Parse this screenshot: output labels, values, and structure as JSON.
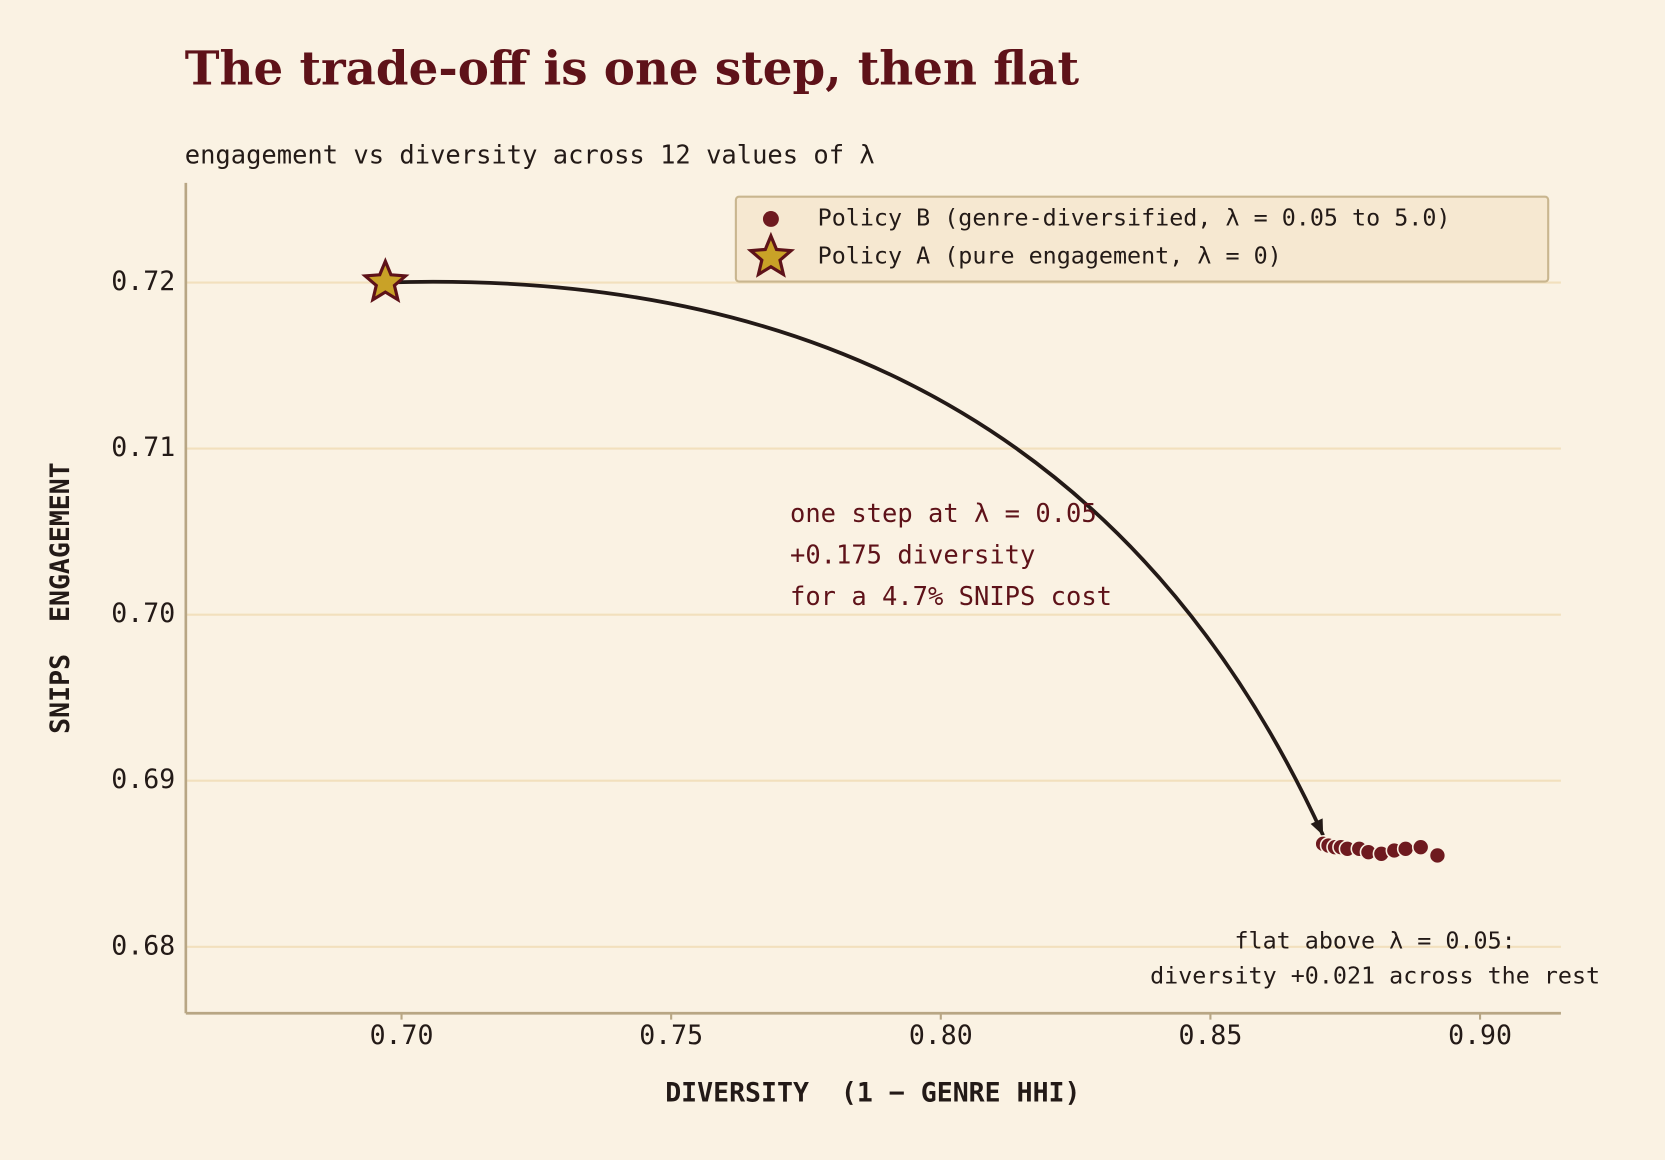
{
  "chart_data": {
    "type": "scatter",
    "title": "The trade-off is one step, then flat",
    "subtitle": "engagement vs diversity across 12 values of λ",
    "x_label": "DIVERSITY  (1 − GENRE HHI)",
    "y_label": "SNIPS  ENGAGEMENT",
    "xlim": [
      0.66,
      0.915
    ],
    "ylim": [
      0.676,
      0.726
    ],
    "xticks": [
      {
        "value": 0.7,
        "label": "0.70"
      },
      {
        "value": 0.75,
        "label": "0.75"
      },
      {
        "value": 0.8,
        "label": "0.80"
      },
      {
        "value": 0.85,
        "label": "0.85"
      },
      {
        "value": 0.9,
        "label": "0.90"
      }
    ],
    "yticks": [
      0.68,
      0.69,
      {
        "value": 0.7,
        "label": "0.70"
      },
      0.71,
      0.72
    ],
    "grid": true,
    "legend": "upper right",
    "series": [
      {
        "name": "Policy B (genre-diversified, λ = 0.05 to 5.0)",
        "color": "#6e1a1f",
        "marker": "circle",
        "x": [
          0.8709,
          0.8719,
          0.8731,
          0.8742,
          0.8754,
          0.8776,
          0.8793,
          0.8817,
          0.8841,
          0.8862,
          0.889,
          0.8921
        ],
        "values": [
          0.6862,
          0.6861,
          0.686,
          0.686,
          0.6859,
          0.6859,
          0.6857,
          0.6856,
          0.6858,
          0.6859,
          0.686,
          0.6855
        ]
      },
      {
        "name": "Policy A (pure engagement, λ = 0)",
        "color": "#c9a227",
        "marker": "star",
        "x": [
          0.697
        ],
        "values": [
          0.72
        ]
      }
    ],
    "annotations": [
      {
        "lines": [
          "one step at λ = 0.05",
          "+0.175 diversity",
          "for a 4.7% SNIPS cost"
        ]
      },
      {
        "lines": [
          "flat above λ = 0.05:",
          "diversity +0.021 across the rest"
        ]
      }
    ]
  }
}
